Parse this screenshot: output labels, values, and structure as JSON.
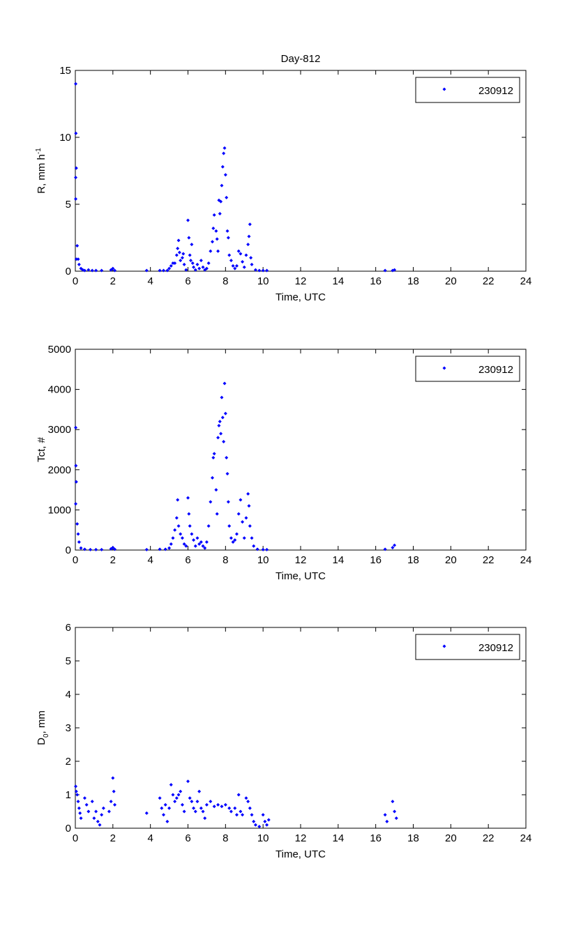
{
  "chart_data": [
    {
      "type": "scatter",
      "title": "Day-812",
      "xlabel": "Time, UTC",
      "ylabel": "R, mm h",
      "ylabel_sup": "-1",
      "xlim": [
        0,
        24
      ],
      "ylim": [
        0,
        15
      ],
      "xticks": [
        0,
        2,
        4,
        6,
        8,
        10,
        12,
        14,
        16,
        18,
        20,
        22,
        24
      ],
      "yticks": [
        0,
        5,
        10,
        15
      ],
      "legend": {
        "label": "230912",
        "placement": "top-right"
      },
      "color": "#0000ff",
      "series": [
        {
          "name": "230912",
          "points": [
            [
              0.02,
              14
            ],
            [
              0.03,
              10.3
            ],
            [
              0.05,
              7.7
            ],
            [
              0.02,
              7
            ],
            [
              0.02,
              5.4
            ],
            [
              0.1,
              1.9
            ],
            [
              0.05,
              0.9
            ],
            [
              0.15,
              0.9
            ],
            [
              0.2,
              0.5
            ],
            [
              0.3,
              0.2
            ],
            [
              0.4,
              0.1
            ],
            [
              0.5,
              0.05
            ],
            [
              0.7,
              0.1
            ],
            [
              0.9,
              0.05
            ],
            [
              1.1,
              0.05
            ],
            [
              1.4,
              0.05
            ],
            [
              1.9,
              0.1
            ],
            [
              2.0,
              0.2
            ],
            [
              2.1,
              0.05
            ],
            [
              3.8,
              0.05
            ],
            [
              4.5,
              0.05
            ],
            [
              4.7,
              0.05
            ],
            [
              4.9,
              0.05
            ],
            [
              5.0,
              0.2
            ],
            [
              5.1,
              0.4
            ],
            [
              5.2,
              0.6
            ],
            [
              5.3,
              0.6
            ],
            [
              5.4,
              1.2
            ],
            [
              5.45,
              1.7
            ],
            [
              5.5,
              2.3
            ],
            [
              5.55,
              1.4
            ],
            [
              5.6,
              0.8
            ],
            [
              5.7,
              1.0
            ],
            [
              5.75,
              1.3
            ],
            [
              5.8,
              0.5
            ],
            [
              5.9,
              0.1
            ],
            [
              6.0,
              3.8
            ],
            [
              6.05,
              2.5
            ],
            [
              6.1,
              1.2
            ],
            [
              6.15,
              0.8
            ],
            [
              6.2,
              2.0
            ],
            [
              6.25,
              0.6
            ],
            [
              6.3,
              0.3
            ],
            [
              6.4,
              0.1
            ],
            [
              6.5,
              0.5
            ],
            [
              6.6,
              0.2
            ],
            [
              6.7,
              0.8
            ],
            [
              6.8,
              0.3
            ],
            [
              6.9,
              0.1
            ],
            [
              7.0,
              0.2
            ],
            [
              7.1,
              0.6
            ],
            [
              7.2,
              1.5
            ],
            [
              7.3,
              2.2
            ],
            [
              7.35,
              3.2
            ],
            [
              7.4,
              4.2
            ],
            [
              7.5,
              3.0
            ],
            [
              7.55,
              2.4
            ],
            [
              7.6,
              1.5
            ],
            [
              7.65,
              5.3
            ],
            [
              7.7,
              4.3
            ],
            [
              7.75,
              5.2
            ],
            [
              7.8,
              6.4
            ],
            [
              7.85,
              7.8
            ],
            [
              7.9,
              8.8
            ],
            [
              7.95,
              9.2
            ],
            [
              8.0,
              7.2
            ],
            [
              8.05,
              5.5
            ],
            [
              8.1,
              3.0
            ],
            [
              8.15,
              2.5
            ],
            [
              8.2,
              1.2
            ],
            [
              8.3,
              0.8
            ],
            [
              8.4,
              0.4
            ],
            [
              8.5,
              0.2
            ],
            [
              8.6,
              0.4
            ],
            [
              8.7,
              1.5
            ],
            [
              8.8,
              1.3
            ],
            [
              8.9,
              0.7
            ],
            [
              9.0,
              0.3
            ],
            [
              9.1,
              1.2
            ],
            [
              9.2,
              2.0
            ],
            [
              9.25,
              2.6
            ],
            [
              9.3,
              3.5
            ],
            [
              9.35,
              1.0
            ],
            [
              9.4,
              0.5
            ],
            [
              9.6,
              0.1
            ],
            [
              9.8,
              0.05
            ],
            [
              10.0,
              0.05
            ],
            [
              10.2,
              0.05
            ],
            [
              16.5,
              0.05
            ],
            [
              16.9,
              0.05
            ],
            [
              17.0,
              0.1
            ]
          ]
        }
      ]
    },
    {
      "type": "scatter",
      "xlabel": "Time, UTC",
      "ylabel": "Tct, #",
      "xlim": [
        0,
        24
      ],
      "ylim": [
        0,
        5000
      ],
      "xticks": [
        0,
        2,
        4,
        6,
        8,
        10,
        12,
        14,
        16,
        18,
        20,
        22,
        24
      ],
      "yticks": [
        0,
        1000,
        2000,
        3000,
        4000,
        5000
      ],
      "legend": {
        "label": "230912",
        "placement": "top-right"
      },
      "color": "#0000ff",
      "series": [
        {
          "name": "230912",
          "points": [
            [
              0.02,
              3050
            ],
            [
              0.03,
              2100
            ],
            [
              0.05,
              1700
            ],
            [
              0.02,
              1150
            ],
            [
              0.1,
              650
            ],
            [
              0.15,
              400
            ],
            [
              0.2,
              200
            ],
            [
              0.3,
              50
            ],
            [
              0.5,
              20
            ],
            [
              0.8,
              10
            ],
            [
              1.1,
              10
            ],
            [
              1.4,
              10
            ],
            [
              1.9,
              30
            ],
            [
              2.0,
              60
            ],
            [
              2.1,
              20
            ],
            [
              3.8,
              10
            ],
            [
              4.5,
              20
            ],
            [
              4.8,
              20
            ],
            [
              5.0,
              50
            ],
            [
              5.1,
              150
            ],
            [
              5.2,
              300
            ],
            [
              5.3,
              500
            ],
            [
              5.4,
              800
            ],
            [
              5.45,
              1250
            ],
            [
              5.5,
              600
            ],
            [
              5.6,
              400
            ],
            [
              5.7,
              300
            ],
            [
              5.8,
              150
            ],
            [
              5.9,
              100
            ],
            [
              6.0,
              1300
            ],
            [
              6.05,
              900
            ],
            [
              6.1,
              600
            ],
            [
              6.2,
              400
            ],
            [
              6.3,
              250
            ],
            [
              6.4,
              100
            ],
            [
              6.5,
              300
            ],
            [
              6.6,
              150
            ],
            [
              6.7,
              200
            ],
            [
              6.8,
              100
            ],
            [
              6.9,
              50
            ],
            [
              7.0,
              200
            ],
            [
              7.1,
              600
            ],
            [
              7.2,
              1200
            ],
            [
              7.3,
              1800
            ],
            [
              7.35,
              2300
            ],
            [
              7.4,
              2400
            ],
            [
              7.5,
              1500
            ],
            [
              7.55,
              900
            ],
            [
              7.6,
              2800
            ],
            [
              7.65,
              3100
            ],
            [
              7.7,
              3200
            ],
            [
              7.75,
              2900
            ],
            [
              7.8,
              3800
            ],
            [
              7.85,
              3300
            ],
            [
              7.9,
              2700
            ],
            [
              7.95,
              4150
            ],
            [
              8.0,
              3400
            ],
            [
              8.05,
              2300
            ],
            [
              8.1,
              1900
            ],
            [
              8.15,
              1200
            ],
            [
              8.2,
              600
            ],
            [
              8.3,
              300
            ],
            [
              8.4,
              200
            ],
            [
              8.5,
              250
            ],
            [
              8.6,
              400
            ],
            [
              8.7,
              900
            ],
            [
              8.8,
              1250
            ],
            [
              8.9,
              700
            ],
            [
              9.0,
              300
            ],
            [
              9.1,
              800
            ],
            [
              9.2,
              1400
            ],
            [
              9.25,
              1100
            ],
            [
              9.3,
              600
            ],
            [
              9.4,
              300
            ],
            [
              9.5,
              100
            ],
            [
              9.7,
              20
            ],
            [
              10.0,
              10
            ],
            [
              10.2,
              10
            ],
            [
              16.5,
              20
            ],
            [
              16.9,
              60
            ],
            [
              17.0,
              120
            ]
          ]
        }
      ]
    },
    {
      "type": "scatter",
      "xlabel": "Time, UTC",
      "ylabel": "D",
      "ylabel_sub": "0",
      "ylabel_suffix": ", mm",
      "xlim": [
        0,
        24
      ],
      "ylim": [
        0,
        6
      ],
      "xticks": [
        0,
        2,
        4,
        6,
        8,
        10,
        12,
        14,
        16,
        18,
        20,
        22,
        24
      ],
      "yticks": [
        0,
        1,
        2,
        3,
        4,
        5,
        6
      ],
      "legend": {
        "label": "230912",
        "placement": "top-right"
      },
      "color": "#0000ff",
      "series": [
        {
          "name": "230912",
          "points": [
            [
              0.02,
              1.25
            ],
            [
              0.05,
              1.1
            ],
            [
              0.1,
              1.0
            ],
            [
              0.15,
              0.8
            ],
            [
              0.2,
              0.6
            ],
            [
              0.25,
              0.45
            ],
            [
              0.3,
              0.3
            ],
            [
              0.5,
              0.9
            ],
            [
              0.6,
              0.7
            ],
            [
              0.7,
              0.5
            ],
            [
              0.9,
              0.8
            ],
            [
              1.0,
              0.3
            ],
            [
              1.1,
              0.5
            ],
            [
              1.2,
              0.2
            ],
            [
              1.3,
              0.1
            ],
            [
              1.4,
              0.4
            ],
            [
              1.5,
              0.6
            ],
            [
              1.8,
              0.5
            ],
            [
              1.9,
              0.8
            ],
            [
              2.0,
              1.5
            ],
            [
              2.05,
              1.1
            ],
            [
              2.1,
              0.7
            ],
            [
              3.8,
              0.45
            ],
            [
              4.5,
              0.9
            ],
            [
              4.6,
              0.6
            ],
            [
              4.7,
              0.4
            ],
            [
              4.8,
              0.7
            ],
            [
              4.9,
              0.2
            ],
            [
              5.0,
              0.6
            ],
            [
              5.1,
              1.3
            ],
            [
              5.2,
              1.0
            ],
            [
              5.3,
              0.8
            ],
            [
              5.4,
              0.9
            ],
            [
              5.5,
              1.0
            ],
            [
              5.6,
              1.1
            ],
            [
              5.7,
              0.7
            ],
            [
              5.8,
              0.5
            ],
            [
              6.0,
              1.4
            ],
            [
              6.1,
              0.9
            ],
            [
              6.2,
              0.8
            ],
            [
              6.3,
              0.6
            ],
            [
              6.4,
              0.5
            ],
            [
              6.5,
              0.8
            ],
            [
              6.6,
              1.1
            ],
            [
              6.7,
              0.6
            ],
            [
              6.8,
              0.5
            ],
            [
              6.9,
              0.3
            ],
            [
              7.0,
              0.7
            ],
            [
              7.2,
              0.8
            ],
            [
              7.4,
              0.65
            ],
            [
              7.6,
              0.7
            ],
            [
              7.8,
              0.65
            ],
            [
              8.0,
              0.7
            ],
            [
              8.2,
              0.6
            ],
            [
              8.3,
              0.5
            ],
            [
              8.5,
              0.6
            ],
            [
              8.6,
              0.4
            ],
            [
              8.7,
              1.0
            ],
            [
              8.8,
              0.5
            ],
            [
              8.9,
              0.4
            ],
            [
              9.1,
              0.9
            ],
            [
              9.2,
              0.8
            ],
            [
              9.3,
              0.6
            ],
            [
              9.4,
              0.4
            ],
            [
              9.5,
              0.2
            ],
            [
              9.6,
              0.1
            ],
            [
              9.8,
              0.05
            ],
            [
              10.0,
              0.4
            ],
            [
              10.1,
              0.2
            ],
            [
              10.2,
              0.1
            ],
            [
              10.3,
              0.25
            ],
            [
              16.5,
              0.4
            ],
            [
              16.6,
              0.2
            ],
            [
              16.9,
              0.8
            ],
            [
              17.0,
              0.5
            ],
            [
              17.1,
              0.3
            ]
          ]
        }
      ]
    }
  ]
}
